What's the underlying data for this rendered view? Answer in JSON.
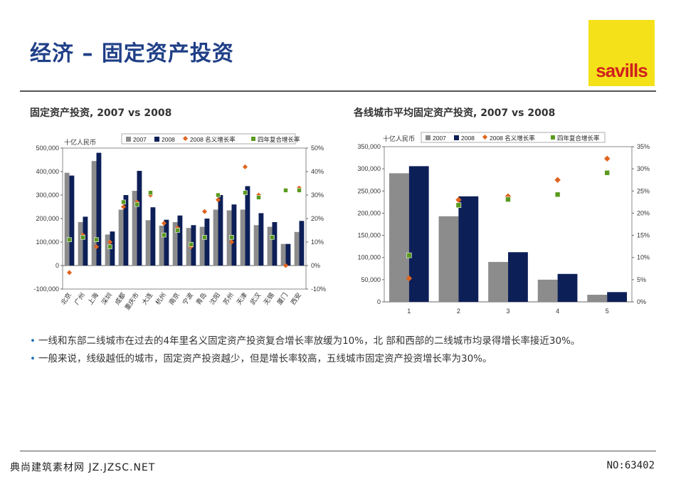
{
  "page": {
    "title": "经济 – 固定资产投资",
    "logo_text": "savills",
    "footer_left": "典尚建筑素材网 JZ.JZSC.NET",
    "footer_right": "NO:63402"
  },
  "bullets": [
    "一线和东部二线城市在过去的4年里名义固定资产投资复合增长率放缓为10%，北 部和西部的二线城市均录得增长率接近30%。",
    "一般来说，线级越低的城市，固定资产投资越少，但是增长率较高，五线城市固定资产投资增长率为30%。"
  ],
  "colors": {
    "series_2007": "#8c8c8c",
    "series_2008": "#0d1f57",
    "nominal_growth": "#e0641e",
    "cagr": "#5a9a1e",
    "title": "#1f3f87"
  },
  "chart_data": [
    {
      "type": "bar",
      "title": "固定资产投资, 2007 vs 2008",
      "ylabel": "十亿人民币",
      "ylim": [
        -100000,
        500000
      ],
      "yticks": [
        "500,000",
        "400,000",
        "300,000",
        "200,000",
        "100,000",
        "0",
        "-100,000"
      ],
      "y2lim": [
        -10,
        50
      ],
      "y2ticks": [
        "50%",
        "40%",
        "30%",
        "20%",
        "10%",
        "0%",
        "-10%"
      ],
      "legend_position": "top",
      "categories": [
        "北京",
        "广州",
        "上海",
        "深圳",
        "成都",
        "重庆市",
        "大连",
        "杭州",
        "南京",
        "宁波",
        "青岛",
        "沈阳",
        "苏州",
        "天津",
        "武汉",
        "无锡",
        "厦门",
        "西安"
      ],
      "series": [
        {
          "name": "2007",
          "kind": "bar",
          "axis": "left",
          "values": [
            395000,
            185000,
            445000,
            132000,
            238000,
            318000,
            193000,
            170000,
            185000,
            160000,
            165000,
            238000,
            235000,
            238000,
            172000,
            165000,
            92000,
            143000
          ]
        },
        {
          "name": "2008",
          "kind": "bar",
          "axis": "left",
          "values": [
            383000,
            208000,
            480000,
            145000,
            300000,
            403000,
            248000,
            195000,
            213000,
            172000,
            200000,
            300000,
            260000,
            338000,
            223000,
            185000,
            92000,
            190000
          ]
        },
        {
          "name": "2008 名义增长率",
          "kind": "point",
          "axis": "right",
          "values": [
            -3,
            13,
            8,
            10,
            25,
            27,
            30,
            18,
            16,
            8,
            23,
            28,
            10,
            42,
            30,
            12,
            0,
            33
          ]
        },
        {
          "name": "四年复合增长率",
          "kind": "point",
          "axis": "right",
          "values": [
            11,
            12,
            11,
            8,
            27,
            26,
            31,
            13,
            15,
            9,
            12,
            30,
            12,
            31,
            29,
            12,
            32,
            32
          ]
        }
      ]
    },
    {
      "type": "bar",
      "title": "各线城市平均固定资产投资, 2007 vs 2008",
      "ylabel": "十亿人民币",
      "ylim": [
        0,
        350000
      ],
      "yticks": [
        "350,000",
        "300,000",
        "250,000",
        "200,000",
        "150,000",
        "100,000",
        "50,000",
        "0"
      ],
      "y2lim": [
        0,
        35
      ],
      "y2ticks": [
        "35%",
        "30%",
        "25%",
        "20%",
        "15%",
        "10%",
        "5%",
        "0%"
      ],
      "legend_position": "top",
      "categories": [
        "1",
        "2",
        "3",
        "4",
        "5"
      ],
      "series": [
        {
          "name": "2007",
          "kind": "bar",
          "axis": "left",
          "values": [
            290000,
            193000,
            90000,
            50000,
            16000
          ]
        },
        {
          "name": "2008",
          "kind": "bar",
          "axis": "left",
          "values": [
            306000,
            238000,
            112000,
            63000,
            22000
          ]
        },
        {
          "name": "2008 名义增长率",
          "kind": "point",
          "axis": "right",
          "values": [
            5.3,
            23,
            23.8,
            27.5,
            32.3
          ]
        },
        {
          "name": "四年复合增长率",
          "kind": "point",
          "axis": "right",
          "values": [
            10.5,
            21.8,
            23.1,
            24.2,
            29.1
          ]
        }
      ]
    }
  ]
}
